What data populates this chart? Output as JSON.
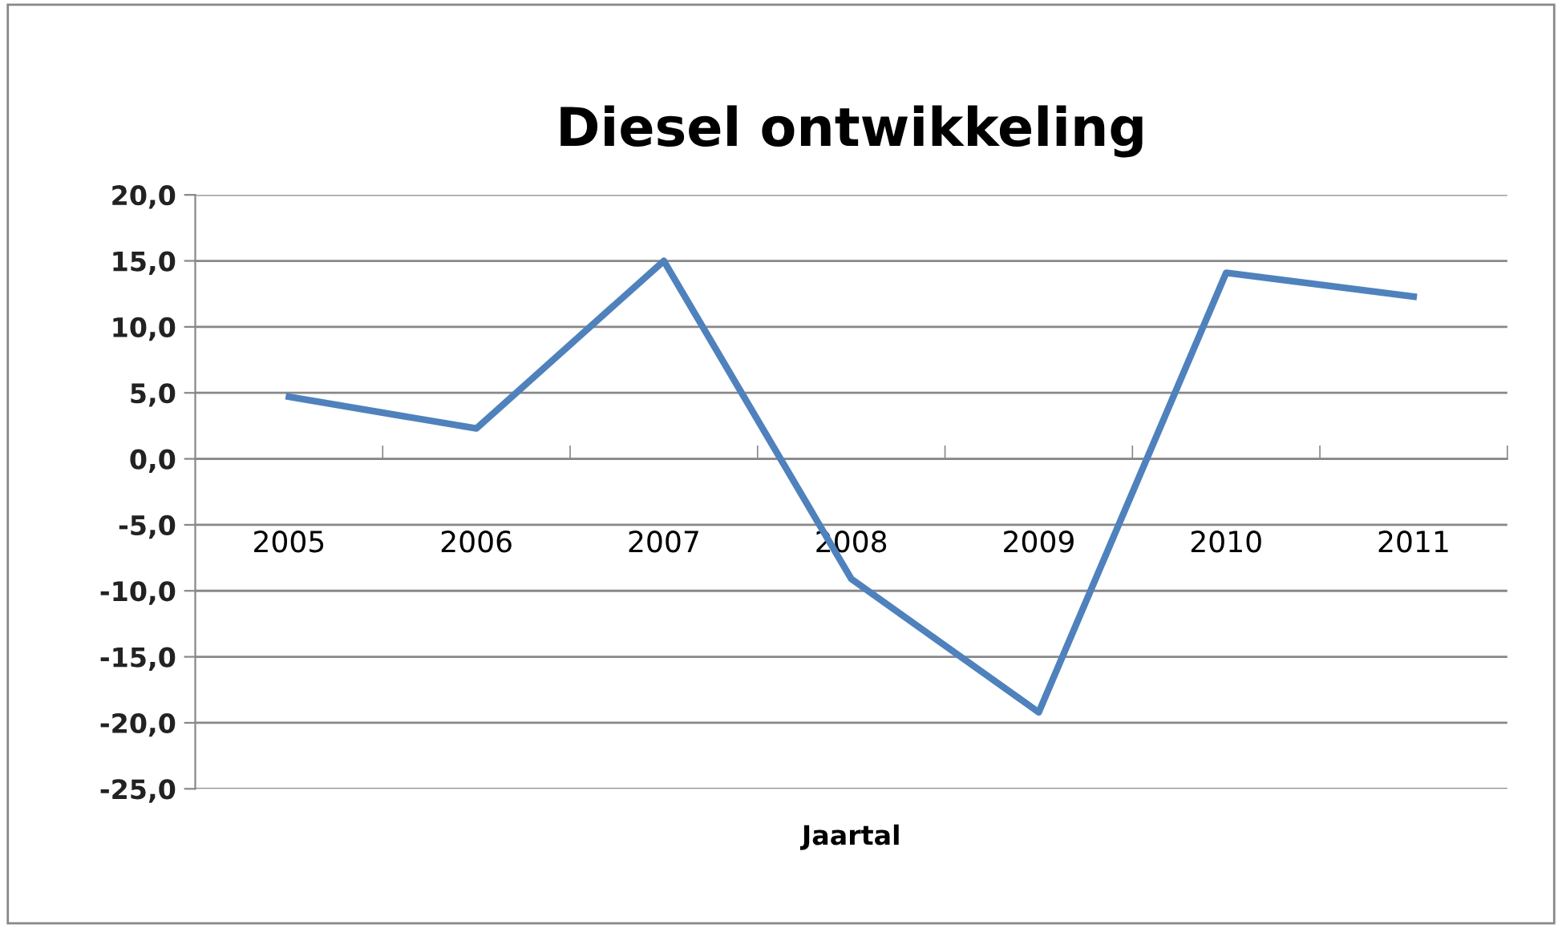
{
  "chart_data": {
    "type": "line",
    "title": "Diesel ontwikkeling",
    "xlabel": "Jaartal",
    "categories": [
      "2005",
      "2006",
      "2007",
      "2008",
      "2009",
      "2010",
      "2011"
    ],
    "series": [
      {
        "color": "#4f81bd",
        "values": [
          4.7,
          2.3,
          15.0,
          -9.1,
          -19.2,
          14.1,
          12.3
        ]
      }
    ],
    "ylim": [
      -25,
      20
    ],
    "yticks": [
      {
        "value": -25,
        "label": "-25,0"
      },
      {
        "value": -20,
        "label": "-20,0"
      },
      {
        "value": -15,
        "label": "-15,0"
      },
      {
        "value": -10,
        "label": "-10,0"
      },
      {
        "value": -5,
        "label": "-5,0"
      },
      {
        "value": 0,
        "label": "0,0"
      },
      {
        "value": 5,
        "label": "5,0"
      },
      {
        "value": 10,
        "label": "10,0"
      },
      {
        "value": 15,
        "label": "15,0"
      },
      {
        "value": 20,
        "label": "20,0"
      }
    ],
    "grid": "y",
    "marker": "none",
    "line_style": "solid"
  }
}
